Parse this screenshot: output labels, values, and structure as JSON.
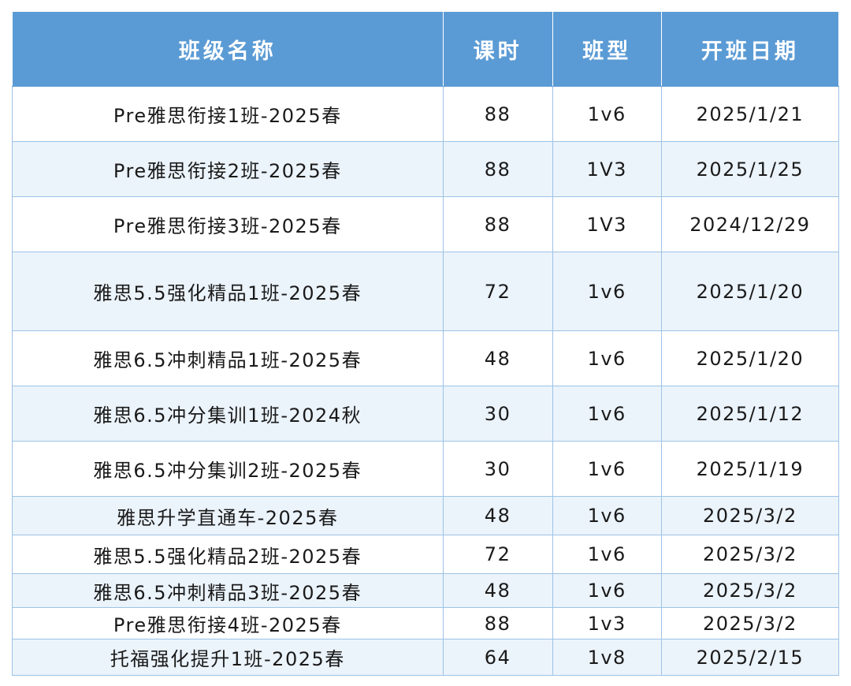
{
  "table": {
    "headers": [
      "班级名称",
      "课时",
      "班型",
      "开班日期"
    ],
    "rows": [
      [
        "Pre雅思衔接1班-2025春",
        "88",
        "1v6",
        "2025/1/21"
      ],
      [
        "Pre雅思衔接2班-2025春",
        "88",
        "1V3",
        "2025/1/25"
      ],
      [
        "Pre雅思衔接3班-2025春",
        "88",
        "1V3",
        "2024/12/29"
      ],
      [
        "雅思5.5强化精品1班-2025春",
        "72",
        "1v6",
        "2025/1/20"
      ],
      [
        "雅思6.5冲刺精品1班-2025春",
        "48",
        "1v6",
        "2025/1/20"
      ],
      [
        "雅思6.5冲分集训1班-2024秋",
        "30",
        "1v6",
        "2025/1/12"
      ],
      [
        "雅思6.5冲分集训2班-2025春",
        "30",
        "1v6",
        "2025/1/19"
      ],
      [
        "雅思升学直通车-2025春",
        "48",
        "1v6",
        "2025/3/2"
      ],
      [
        "雅思5.5强化精品2班-2025春",
        "72",
        "1v6",
        "2025/3/2"
      ],
      [
        "雅思6.5冲刺精品3班-2025春",
        "48",
        "1v6",
        "2025/3/2"
      ],
      [
        "Pre雅思衔接4班-2025春",
        "88",
        "1v3",
        "2025/3/2"
      ],
      [
        "托福强化提升1班-2025春",
        "64",
        "1v8",
        "2025/2/15"
      ]
    ]
  },
  "colors": {
    "header_bg": "#5b9bd5",
    "header_text": "#ffffff",
    "row_alt_bg": "#ebf3fb",
    "border": "#9dc3e6"
  }
}
